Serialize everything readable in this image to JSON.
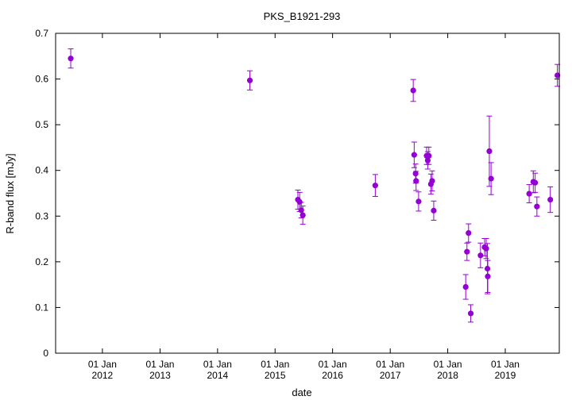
{
  "chart_data": {
    "type": "scatter",
    "title": "PKS_B1921-293",
    "xlabel": "date",
    "ylabel": "R-band flux [mJy]",
    "xlim": [
      "2011-03-10",
      "2019-12-10"
    ],
    "ylim": [
      0,
      0.7
    ],
    "yticks": [
      0,
      0.1,
      0.2,
      0.3,
      0.4,
      0.5,
      0.6,
      0.7
    ],
    "ytick_labels": [
      "0",
      "0.1",
      "0.2",
      "0.3",
      "0.4",
      "0.5",
      "0.6",
      "0.7"
    ],
    "xticks": [
      {
        "date": "2012-01-01",
        "line1": "01 Jan",
        "line2": "2012"
      },
      {
        "date": "2013-01-01",
        "line1": "01 Jan",
        "line2": "2013"
      },
      {
        "date": "2014-01-01",
        "line1": "01 Jan",
        "line2": "2014"
      },
      {
        "date": "2015-01-01",
        "line1": "01 Jan",
        "line2": "2015"
      },
      {
        "date": "2016-01-01",
        "line1": "01 Jan",
        "line2": "2016"
      },
      {
        "date": "2017-01-01",
        "line1": "01 Jan",
        "line2": "2017"
      },
      {
        "date": "2018-01-01",
        "line1": "01 Jan",
        "line2": "2018"
      },
      {
        "date": "2019-01-01",
        "line1": "01 Jan",
        "line2": "2019"
      }
    ],
    "grid": false,
    "marker_color": "#9400d3",
    "points": [
      {
        "date": "2011-06-14",
        "flux": 0.645,
        "err": 0.021
      },
      {
        "date": "2014-07-25",
        "flux": 0.597,
        "err": 0.021
      },
      {
        "date": "2015-05-26",
        "flux": 0.336,
        "err": 0.021
      },
      {
        "date": "2015-06-06",
        "flux": 0.331,
        "err": 0.021
      },
      {
        "date": "2015-06-16",
        "flux": 0.313,
        "err": 0.017
      },
      {
        "date": "2015-06-26",
        "flux": 0.302,
        "err": 0.02
      },
      {
        "date": "2016-09-28",
        "flux": 0.367,
        "err": 0.024
      },
      {
        "date": "2017-05-27",
        "flux": 0.575,
        "err": 0.024
      },
      {
        "date": "2017-06-02",
        "flux": 0.434,
        "err": 0.028
      },
      {
        "date": "2017-06-11",
        "flux": 0.393,
        "err": 0.021
      },
      {
        "date": "2017-06-14",
        "flux": 0.377,
        "err": 0.021
      },
      {
        "date": "2017-06-30",
        "flux": 0.332,
        "err": 0.021
      },
      {
        "date": "2017-08-20",
        "flux": 0.432,
        "err": 0.019
      },
      {
        "date": "2017-08-27",
        "flux": 0.422,
        "err": 0.019
      },
      {
        "date": "2017-09-03",
        "flux": 0.432,
        "err": 0.019
      },
      {
        "date": "2017-09-16",
        "flux": 0.37,
        "err": 0.022
      },
      {
        "date": "2017-09-24",
        "flux": 0.377,
        "err": 0.022
      },
      {
        "date": "2017-10-04",
        "flux": 0.312,
        "err": 0.021
      },
      {
        "date": "2018-04-25",
        "flux": 0.145,
        "err": 0.027
      },
      {
        "date": "2018-05-03",
        "flux": 0.222,
        "err": 0.019
      },
      {
        "date": "2018-05-13",
        "flux": 0.263,
        "err": 0.02
      },
      {
        "date": "2018-05-27",
        "flux": 0.087,
        "err": 0.019
      },
      {
        "date": "2018-07-28",
        "flux": 0.214,
        "err": 0.027
      },
      {
        "date": "2018-08-23",
        "flux": 0.232,
        "err": 0.019
      },
      {
        "date": "2018-09-02",
        "flux": 0.229,
        "err": 0.022
      },
      {
        "date": "2018-09-10",
        "flux": 0.185,
        "err": 0.055
      },
      {
        "date": "2018-09-12",
        "flux": 0.168,
        "err": 0.035
      },
      {
        "date": "2018-09-22",
        "flux": 0.442,
        "err": 0.077
      },
      {
        "date": "2018-10-03",
        "flux": 0.382,
        "err": 0.035
      },
      {
        "date": "2019-06-02",
        "flux": 0.349,
        "err": 0.02
      },
      {
        "date": "2019-06-28",
        "flux": 0.375,
        "err": 0.024
      },
      {
        "date": "2019-07-10",
        "flux": 0.373,
        "err": 0.021
      },
      {
        "date": "2019-07-21",
        "flux": 0.321,
        "err": 0.021
      },
      {
        "date": "2019-10-14",
        "flux": 0.336,
        "err": 0.028
      },
      {
        "date": "2019-11-28",
        "flux": 0.608,
        "err": 0.024
      }
    ]
  }
}
